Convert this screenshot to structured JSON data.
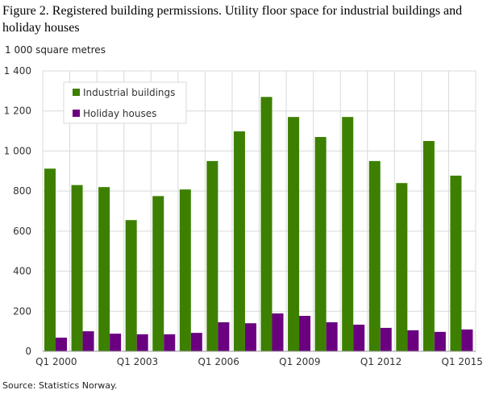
{
  "title": "Figure 2. Registered building permissions. Utility floor space for industrial buildings and holiday houses",
  "source": "Source: Statistics Norway.",
  "chart_data": {
    "type": "bar",
    "title": "Figure 2. Registered building permissions. Utility floor space for industrial buildings and holiday houses",
    "ylabel": "1 000 square  metres",
    "xlabel": "",
    "ylim": [
      0,
      1400
    ],
    "yticks": [
      0,
      200,
      400,
      600,
      800,
      1000,
      1200,
      1400
    ],
    "ytick_labels": [
      "0",
      "200",
      "400",
      "600",
      "800",
      "1 000",
      "1 200",
      "1 400"
    ],
    "categories": [
      "Q1 2000",
      "Q1 2001",
      "Q1 2002",
      "Q1 2003",
      "Q1 2004",
      "Q1 2005",
      "Q1 2006",
      "Q1 2007",
      "Q1 2008",
      "Q1 2009",
      "Q1 2010",
      "Q1 2011",
      "Q1 2012",
      "Q1 2013",
      "Q1 2014",
      "Q1 2015"
    ],
    "xtick_labels_shown": [
      "Q1 2000",
      "Q1 2003",
      "Q1 2006",
      "Q1 2009",
      "Q1 2012",
      "Q1 2015"
    ],
    "grid": true,
    "legend_placement": "top-left",
    "series": [
      {
        "name": "Industrial buildings",
        "color": "#3d8000",
        "values": [
          912,
          830,
          820,
          655,
          775,
          808,
          950,
          1098,
          1270,
          1170,
          1070,
          1170,
          950,
          840,
          1050,
          877
        ]
      },
      {
        "name": "Holiday houses",
        "color": "#6a0080",
        "values": [
          68,
          100,
          88,
          85,
          85,
          92,
          145,
          140,
          189,
          177,
          145,
          133,
          117,
          105,
          97,
          109
        ]
      }
    ]
  }
}
